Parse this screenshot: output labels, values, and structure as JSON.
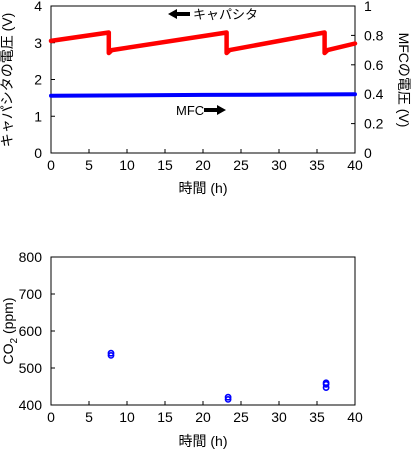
{
  "chart_data": [
    {
      "type": "line",
      "xlabel": "時間 (h)",
      "ylabel": "キャパシタの電圧 (V)",
      "y2label": "MFCの電圧 (V)",
      "xlim": [
        0,
        40
      ],
      "ylim": [
        0,
        4
      ],
      "y2lim": [
        0,
        1
      ],
      "xticks": [
        0,
        5,
        10,
        15,
        20,
        25,
        30,
        35,
        40
      ],
      "yticks": [
        0,
        1,
        2,
        3,
        4
      ],
      "y2ticks": [
        "0",
        "0.2",
        "0.4",
        "0.6",
        "0.8",
        "1"
      ],
      "grid": false,
      "series": [
        {
          "name": "キャパシタ",
          "axis": "left",
          "color": "#ff0000",
          "x": [
            0,
            7.6,
            7.6,
            8.0,
            23.1,
            23.1,
            23.5,
            36.0,
            36.0,
            36.4,
            40
          ],
          "y": [
            3.05,
            3.28,
            2.72,
            2.8,
            3.28,
            2.72,
            2.8,
            3.28,
            2.72,
            2.8,
            2.98
          ]
        },
        {
          "name": "MFC",
          "axis": "right",
          "color": "#0000ff",
          "x": [
            0,
            10,
            20,
            30,
            40
          ],
          "y": [
            0.39,
            0.392,
            0.395,
            0.397,
            0.4
          ]
        }
      ],
      "annotations": [
        {
          "text": "キャパシタ",
          "arrow": "left"
        },
        {
          "text": "MFC",
          "arrow": "right"
        }
      ]
    },
    {
      "type": "scatter",
      "xlabel": "時間 (h)",
      "ylabel": "CO2 (ppm)",
      "ylabel_main": "CO",
      "ylabel_sub": "2",
      "ylabel_rest": " (ppm)",
      "xlim": [
        0,
        40
      ],
      "ylim": [
        400,
        800
      ],
      "xticks": [
        0,
        5,
        10,
        15,
        20,
        25,
        30,
        35,
        40
      ],
      "yticks": [
        400,
        500,
        600,
        700,
        800
      ],
      "grid": false,
      "color": "#0000ff",
      "points": [
        {
          "x": 7.9,
          "y": 534
        },
        {
          "x": 7.9,
          "y": 540
        },
        {
          "x": 23.3,
          "y": 415
        },
        {
          "x": 23.3,
          "y": 421
        },
        {
          "x": 36.2,
          "y": 447
        },
        {
          "x": 36.2,
          "y": 456
        },
        {
          "x": 36.2,
          "y": 460
        }
      ]
    }
  ]
}
